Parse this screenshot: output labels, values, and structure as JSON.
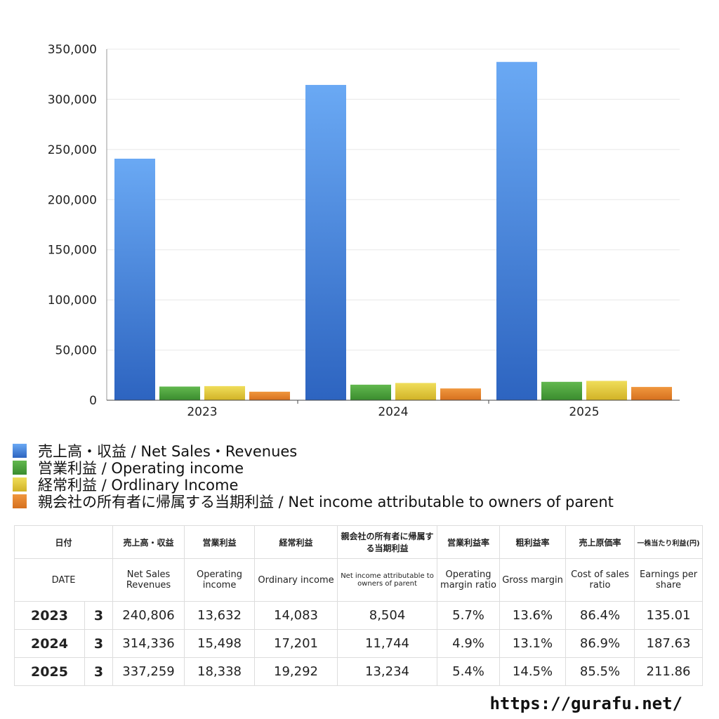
{
  "chart_data": {
    "type": "bar",
    "categories": [
      "2023",
      "2024",
      "2025"
    ],
    "ylim": [
      0,
      350000
    ],
    "yticks": [
      "350,000",
      "300,000",
      "250,000",
      "200,000",
      "150,000",
      "100,000",
      "50,000",
      "0"
    ],
    "ytick_values": [
      350000,
      300000,
      250000,
      200000,
      150000,
      100000,
      50000,
      0
    ],
    "grid": true,
    "legend_placement": "bottom",
    "series": [
      {
        "name": "売上高・収益 / Net Sales・Revenues",
        "values": [
          240806,
          314336,
          337259
        ],
        "color_top": "#6aa9f4",
        "color_bottom": "#2d64c0"
      },
      {
        "name": "営業利益 / Operating income",
        "values": [
          13632,
          15498,
          18338
        ],
        "color_top": "#62b84f",
        "color_bottom": "#3a8c2e"
      },
      {
        "name": "経常利益 / Ordlinary Income",
        "values": [
          14083,
          17201,
          19292
        ],
        "color_top": "#f0de5a",
        "color_bottom": "#d1b226"
      },
      {
        "name": "親会社の所有者に帰属する当期利益 / Net income attributable to owners of parent",
        "values": [
          8504,
          11744,
          13234
        ],
        "color_top": "#f0973e",
        "color_bottom": "#d6701e"
      }
    ]
  },
  "table": {
    "header_jp": [
      "日付",
      "売上高・収益",
      "営業利益",
      "経常利益",
      "親会社の所有者に帰属する当期利益",
      "営業利益率",
      "粗利益率",
      "売上原価率",
      "一株当たり利益(円)"
    ],
    "header_en": [
      "DATE",
      "Net Sales Revenues",
      "Operating income",
      "Ordinary income",
      "Net income attributable to owners of parent",
      "Operating margin ratio",
      "Gross margin",
      "Cost of sales ratio",
      "Earnings per share"
    ],
    "rows": [
      {
        "year": "2023",
        "month": "3",
        "sales": "240,806",
        "op": "13,632",
        "ord": "14,083",
        "net": "8,504",
        "opm": "5.7%",
        "gross": "13.6%",
        "cost": "86.4%",
        "eps": "135.01"
      },
      {
        "year": "2024",
        "month": "3",
        "sales": "314,336",
        "op": "15,498",
        "ord": "17,201",
        "net": "11,744",
        "opm": "4.9%",
        "gross": "13.1%",
        "cost": "86.9%",
        "eps": "187.63"
      },
      {
        "year": "2025",
        "month": "3",
        "sales": "337,259",
        "op": "18,338",
        "ord": "19,292",
        "net": "13,234",
        "opm": "5.4%",
        "gross": "14.5%",
        "cost": "85.5%",
        "eps": "211.86"
      }
    ]
  },
  "footer": {
    "url": "https://gurafu.net/"
  }
}
